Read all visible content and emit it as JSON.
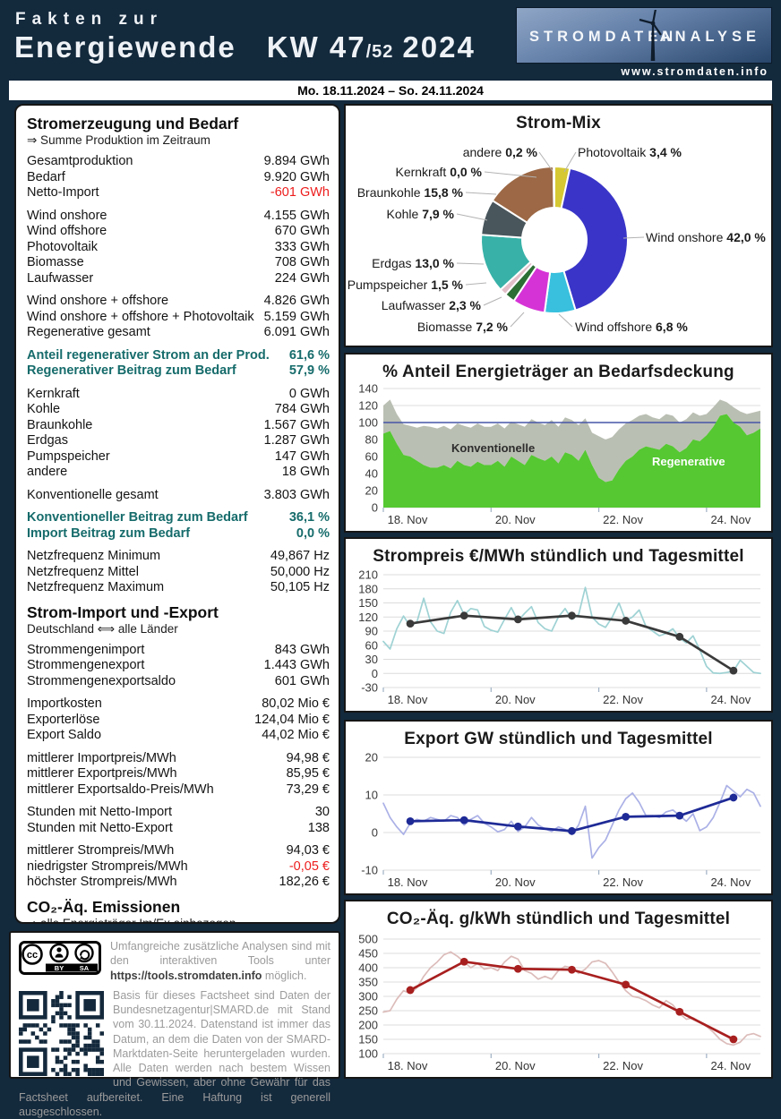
{
  "header": {
    "line1": "Fakten zur",
    "line2": "Energiewende",
    "kw": "KW 47",
    "kw_sub": "/52",
    "year": "2024",
    "logo_left": "STROMDATEN",
    "logo_right": "ANALYSE",
    "logo_url": "www.stromdaten.info",
    "colors": {
      "background": "#13293c",
      "text": "#eef2f6"
    }
  },
  "date_bar": "Mo. 18.11.2024 – So. 24.11.2024",
  "left_panel": {
    "blocks": [
      {
        "type": "head",
        "title": "Stromerzeugung und Bedarf",
        "subtitle": "⇒ Summe Produktion im Zeitraum"
      },
      {
        "type": "rows",
        "rows": [
          [
            "Gesamtproduktion",
            "9.894 GWh",
            ""
          ],
          [
            "Bedarf",
            "9.920 GWh",
            ""
          ],
          [
            "Netto-Import",
            "-601 GWh",
            "red"
          ]
        ]
      },
      {
        "type": "rows",
        "rows": [
          [
            "Wind onshore",
            "4.155 GWh",
            ""
          ],
          [
            "Wind offshore",
            "670 GWh",
            ""
          ],
          [
            "Photovoltaik",
            "333 GWh",
            ""
          ],
          [
            "Biomasse",
            "708 GWh",
            ""
          ],
          [
            "Laufwasser",
            "224 GWh",
            ""
          ]
        ]
      },
      {
        "type": "rows",
        "rows": [
          [
            "Wind onshore + offshore",
            "4.826 GWh",
            ""
          ],
          [
            "Wind onshore + offshore + Photovoltaik",
            "5.159 GWh",
            ""
          ],
          [
            "Regenerative gesamt",
            "6.091 GWh",
            ""
          ]
        ]
      },
      {
        "type": "rows",
        "rows": [
          [
            "Anteil regenerativer Strom an der Prod.",
            "61,6 %",
            "teal"
          ],
          [
            "Regenerativer Beitrag zum Bedarf",
            "57,9 %",
            "teal"
          ]
        ]
      },
      {
        "type": "rows",
        "rows": [
          [
            "Kernkraft",
            "0 GWh",
            ""
          ],
          [
            "Kohle",
            "784 GWh",
            ""
          ],
          [
            "Braunkohle",
            "1.567 GWh",
            ""
          ],
          [
            "Erdgas",
            "1.287 GWh",
            ""
          ],
          [
            "Pumpspeicher",
            "147 GWh",
            ""
          ],
          [
            "andere",
            "18 GWh",
            ""
          ]
        ]
      },
      {
        "type": "rows",
        "rows": [
          [
            "Konventionelle gesamt",
            "3.803 GWh",
            ""
          ]
        ]
      },
      {
        "type": "rows",
        "rows": [
          [
            "Konventioneller Beitrag zum Bedarf",
            "36,1 %",
            "teal"
          ],
          [
            "Import Beitrag zum Bedarf",
            "0,0 %",
            "teal"
          ]
        ]
      },
      {
        "type": "rows",
        "rows": [
          [
            "Netzfrequenz Minimum",
            "49,867 Hz",
            ""
          ],
          [
            "Netzfrequenz Mittel",
            "50,000 Hz",
            ""
          ],
          [
            "Netzfrequenz Maximum",
            "50,105 Hz",
            ""
          ]
        ]
      },
      {
        "type": "head",
        "title": "Strom-Import und -Export",
        "subtitle": "Deutschland ⟺ alle Länder"
      },
      {
        "type": "rows",
        "rows": [
          [
            "Strommengenimport",
            "843 GWh",
            ""
          ],
          [
            "Strommengenexport",
            "1.443 GWh",
            ""
          ],
          [
            "Strommengenexportsaldo",
            "601 GWh",
            ""
          ]
        ]
      },
      {
        "type": "rows",
        "rows": [
          [
            "Importkosten",
            "80,02 Mio €",
            ""
          ],
          [
            "Exporterlöse",
            "124,04 Mio €",
            ""
          ],
          [
            "Export Saldo",
            "44,02 Mio €",
            ""
          ]
        ]
      },
      {
        "type": "rows",
        "rows": [
          [
            "mittlerer Importpreis/MWh",
            "94,98 €",
            ""
          ],
          [
            "mittlerer Exportpreis/MWh",
            "85,95 €",
            ""
          ],
          [
            "mittlerer Exportsaldo-Preis/MWh",
            "73,29 €",
            ""
          ]
        ]
      },
      {
        "type": "rows",
        "rows": [
          [
            "Stunden mit Netto-Import",
            "30",
            ""
          ],
          [
            "Stunden mit Netto-Export",
            "138",
            ""
          ]
        ]
      },
      {
        "type": "rows",
        "rows": [
          [
            "mittlerer Strompreis/MWh",
            "94,03 €",
            ""
          ],
          [
            "niedrigster Strompreis/MWh",
            "-0,05 €",
            "red"
          ],
          [
            "höchster Strompreis/MWh",
            "182,26 €",
            ""
          ]
        ]
      },
      {
        "type": "head",
        "title": "CO₂-Äq. Emissionen",
        "subtitle": "⇒ alle Energieträger Im/Ex einbezogen"
      }
    ],
    "colors": {
      "highlight_teal": "#166b6b",
      "negative_red": "#ed1c1c"
    }
  },
  "info_box": {
    "license": {
      "cc": "cc",
      "by": "BY",
      "sa": "SA"
    },
    "para1_pre": "Umfangreiche zusätzliche Analysen sind mit den interaktiven Tools unter ",
    "para1_link": "https://tools.stromdaten.info",
    "para1_post": " möglich.",
    "para2": "Basis für dieses Factsheet sind Daten der Bundesnetzagentur|SMARD.de mit Stand vom 30.11.2024. Datenstand ist immer das Datum, an dem die Daten von der SMARD-Marktdaten-Seite heruntergeladen wurden. Alle Daten werden nach bestem Wissen und Gewissen, aber ohne Gewähr für das Factsheet aufbereitet. Eine Haftung ist generell ausgeschlossen."
  },
  "chart_data": [
    {
      "type": "pie",
      "donut": true,
      "title": "Strom-Mix",
      "slices": [
        {
          "name": "Photovoltaik",
          "pct": 3.4,
          "label": "3,4 %",
          "color": "#d6c832"
        },
        {
          "name": "Wind onshore",
          "pct": 42.0,
          "label": "42,0 %",
          "color": "#3a35c8"
        },
        {
          "name": "Wind offshore",
          "pct": 6.8,
          "label": "6,8 %",
          "color": "#38c0de"
        },
        {
          "name": "Biomasse",
          "pct": 7.2,
          "label": "7,2 %",
          "color": "#d633d6"
        },
        {
          "name": "Laufwasser",
          "pct": 2.3,
          "label": "2,3 %",
          "color": "#2c6e34"
        },
        {
          "name": "Pumpspeicher",
          "pct": 1.5,
          "label": "1,5 %",
          "color": "#e2bfc9"
        },
        {
          "name": "Erdgas",
          "pct": 13.0,
          "label": "13,0 %",
          "color": "#38b2a8"
        },
        {
          "name": "Kohle",
          "pct": 7.9,
          "label": "7,9 %",
          "color": "#49565c"
        },
        {
          "name": "Braunkohle",
          "pct": 15.8,
          "label": "15,8 %",
          "color": "#9c6845"
        },
        {
          "name": "Kernkraft",
          "pct": 0.0,
          "label": "0,0 %",
          "color": "#999999"
        },
        {
          "name": "andere",
          "pct": 0.2,
          "label": "0,2 %",
          "color": "#d8d8d8"
        }
      ]
    },
    {
      "type": "area",
      "title": "% Anteil Energieträger an Bedarfsdeckung",
      "ylim": [
        0,
        140
      ],
      "yticks": [
        0,
        20,
        40,
        60,
        80,
        100,
        120,
        140
      ],
      "xticks": [
        "18. Nov",
        "20. Nov",
        "22. Nov",
        "24. Nov"
      ],
      "x_hours_step": 3,
      "reference_line": 100,
      "inner_labels": {
        "konventionelle": "Konventionelle",
        "regenerative": "Regenerative"
      },
      "series": {
        "regenerative": [
          87,
          90,
          75,
          62,
          60,
          55,
          50,
          47,
          47,
          50,
          46,
          55,
          50,
          48,
          54,
          50,
          50,
          55,
          48,
          60,
          55,
          50,
          62,
          58,
          55,
          60,
          52,
          65,
          62,
          55,
          68,
          50,
          35,
          30,
          32,
          45,
          55,
          60,
          68,
          72,
          70,
          68,
          75,
          72,
          65,
          70,
          80,
          78,
          85,
          95,
          108,
          110,
          100,
          95,
          85,
          88,
          93
        ],
        "total": [
          120,
          127,
          110,
          98,
          96,
          94,
          96,
          95,
          93,
          96,
          92,
          99,
          96,
          94,
          99,
          95,
          95,
          99,
          93,
          101,
          98,
          95,
          104,
          100,
          97,
          103,
          95,
          106,
          103,
          97,
          105,
          88,
          84,
          80,
          83,
          92,
          99,
          103,
          108,
          110,
          106,
          104,
          110,
          108,
          100,
          104,
          112,
          108,
          110,
          118,
          127,
          124,
          118,
          113,
          110,
          112,
          114
        ]
      },
      "colors": {
        "regenerative": "#55c832",
        "konventionelle": "#babfb3",
        "reference": "#4656a8"
      }
    },
    {
      "type": "line",
      "title": "Strompreis €/MWh stündlich und Tagesmittel",
      "ylim": [
        -30,
        210
      ],
      "yticks": [
        -30,
        0,
        30,
        60,
        90,
        120,
        150,
        180,
        210
      ],
      "xticks": [
        "18. Nov",
        "20. Nov",
        "22. Nov",
        "24. Nov"
      ],
      "x_hours_step": 3,
      "hourly": [
        68,
        52,
        95,
        122,
        100,
        110,
        160,
        110,
        90,
        85,
        130,
        155,
        125,
        138,
        135,
        100,
        92,
        88,
        115,
        140,
        112,
        128,
        142,
        108,
        95,
        90,
        120,
        138,
        115,
        125,
        183,
        120,
        105,
        98,
        120,
        150,
        112,
        120,
        135,
        100,
        90,
        80,
        85,
        95,
        75,
        65,
        80,
        50,
        15,
        1,
        0,
        2,
        5,
        28,
        15,
        2,
        0
      ],
      "daily_mean": [
        106,
        123,
        115,
        123,
        112,
        78,
        6
      ],
      "colors": {
        "hourly": "#9fd2d4",
        "mean": "#3a3a3a"
      }
    },
    {
      "type": "line",
      "title": "Export GW stündlich und Tagesmittel",
      "ylim": [
        -10,
        20
      ],
      "yticks": [
        -10,
        0,
        10,
        20
      ],
      "xticks": [
        "18. Nov",
        "20. Nov",
        "22. Nov",
        "24. Nov"
      ],
      "x_hours_step": 3,
      "hourly": [
        7.8,
        4,
        1.5,
        -0.5,
        2.5,
        3.5,
        3,
        4,
        3.5,
        3,
        4.5,
        4,
        2,
        3.5,
        4.5,
        2.5,
        1.5,
        0.2,
        0.8,
        3,
        0.3,
        1.5,
        4,
        2,
        1,
        0.3,
        1.5,
        0.8,
        -0.5,
        2,
        7,
        -6.8,
        -4,
        -2,
        2,
        6,
        9,
        10.5,
        8,
        4.5,
        4.5,
        4,
        5.5,
        6,
        4.5,
        3,
        5,
        0.5,
        1.5,
        4,
        8,
        12.5,
        11,
        9.5,
        11.5,
        10.5,
        7
      ],
      "daily_mean": [
        3.0,
        3.3,
        1.6,
        0.4,
        4.2,
        4.5,
        9.3
      ],
      "colors": {
        "hourly": "#abb1e6",
        "mean": "#1e2a96"
      }
    },
    {
      "type": "line",
      "title": "CO₂-Äq. g/kWh stündlich und Tagesmittel",
      "ylim": [
        100,
        500
      ],
      "yticks": [
        100,
        150,
        200,
        250,
        300,
        350,
        400,
        450,
        500
      ],
      "xticks": [
        "18. Nov",
        "20. Nov",
        "22. Nov",
        "24. Nov"
      ],
      "x_hours_step": 3,
      "hourly": [
        245,
        250,
        290,
        320,
        310,
        330,
        370,
        400,
        420,
        445,
        455,
        440,
        420,
        400,
        415,
        395,
        400,
        390,
        420,
        440,
        430,
        390,
        380,
        360,
        370,
        360,
        390,
        405,
        400,
        380,
        395,
        420,
        425,
        415,
        385,
        350,
        320,
        300,
        295,
        285,
        270,
        260,
        285,
        270,
        240,
        220,
        225,
        210,
        195,
        175,
        150,
        135,
        130,
        140,
        165,
        170,
        160
      ],
      "daily_mean": [
        322,
        421,
        396,
        393,
        341,
        246,
        150
      ],
      "colors": {
        "hourly": "#dcbcba",
        "mean": "#a81f1f"
      }
    }
  ]
}
